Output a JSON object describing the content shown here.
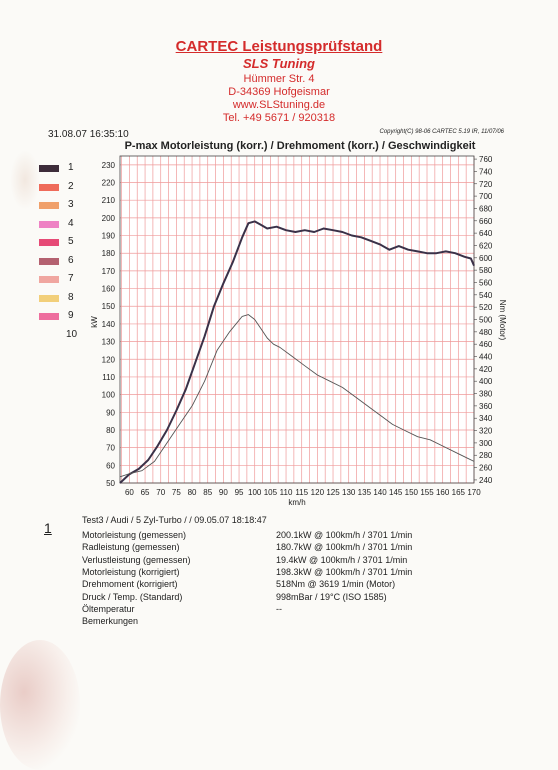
{
  "header": {
    "title": "CARTEC Leistungsprüfstand",
    "subtitle": "SLS Tuning",
    "street": "Hümmer Str. 4",
    "city": "D-34369 Hofgeismar",
    "web": "www.SLStuning.de",
    "tel": "Tel. +49 5671 / 920318"
  },
  "meta": {
    "datetime": "31.08.07 16:35:10",
    "copyright": "Copyright(C) 98-06 CARTEC 5.19 IR, 11/07/06"
  },
  "colors": {
    "grid": "#ef9a9a",
    "power": "#3a3148",
    "torque": "#555555",
    "header_red": "#d42b2b"
  },
  "legend": [
    {
      "num": "1",
      "color": "#3d2c3a"
    },
    {
      "num": "2",
      "color": "#ef6b5a"
    },
    {
      "num": "3",
      "color": "#f0a06a"
    },
    {
      "num": "4",
      "color": "#ee82c4"
    },
    {
      "num": "5",
      "color": "#e64a76"
    },
    {
      "num": "6",
      "color": "#b46170"
    },
    {
      "num": "7",
      "color": "#f0a6a0"
    },
    {
      "num": "8",
      "color": "#f2cf7a"
    },
    {
      "num": "9",
      "color": "#ee6e9e"
    },
    {
      "num": "10",
      "color": ""
    }
  ],
  "chart_data": {
    "type": "line",
    "title": "P-max Motorleistung (korr.) / Drehmoment (korr.) / Geschwindigkeit",
    "xlabel": "km/h",
    "ylabel": "kW",
    "y2label": "Nm (Motor)",
    "xlim": [
      57,
      170
    ],
    "ylim": [
      50,
      235
    ],
    "y2lim": [
      235,
      765
    ],
    "x_ticks": [
      60,
      65,
      70,
      75,
      80,
      85,
      90,
      95,
      100,
      105,
      110,
      115,
      120,
      125,
      130,
      135,
      140,
      145,
      150,
      155,
      160,
      165,
      170
    ],
    "y_ticks": [
      50,
      60,
      70,
      80,
      90,
      100,
      110,
      120,
      130,
      140,
      150,
      160,
      170,
      180,
      190,
      200,
      210,
      220,
      230
    ],
    "y2_ticks": [
      240,
      260,
      280,
      300,
      320,
      340,
      360,
      380,
      400,
      420,
      440,
      460,
      480,
      500,
      520,
      540,
      560,
      580,
      600,
      620,
      640,
      660,
      680,
      700,
      720,
      740,
      760
    ],
    "grid": true,
    "series": [
      {
        "axis": "left",
        "x": [
          57,
          60,
          63,
          66,
          69,
          72,
          75,
          78,
          81,
          84,
          87,
          90,
          93,
          96,
          98,
          100,
          102,
          104,
          107,
          110,
          113,
          116,
          119,
          122,
          125,
          128,
          131,
          134,
          137,
          140,
          143,
          146,
          149,
          152,
          155,
          158,
          161,
          164,
          167,
          169,
          170
        ],
        "values": [
          50,
          55,
          58,
          63,
          71,
          80,
          91,
          103,
          118,
          133,
          150,
          163,
          175,
          189,
          197,
          198,
          196,
          194,
          195,
          193,
          192,
          193,
          192,
          194,
          193,
          192,
          190,
          189,
          187,
          185,
          182,
          184,
          182,
          181,
          180,
          180,
          181,
          180,
          178,
          177,
          173
        ]
      },
      {
        "axis": "right",
        "x": [
          57,
          60,
          64,
          68,
          72,
          76,
          80,
          84,
          88,
          92,
          96,
          98,
          100,
          102,
          104,
          106,
          108,
          112,
          116,
          120,
          124,
          128,
          132,
          136,
          140,
          144,
          148,
          152,
          156,
          160,
          164,
          168,
          170
        ],
        "values": [
          245,
          250,
          255,
          270,
          300,
          330,
          360,
          400,
          450,
          480,
          505,
          508,
          500,
          485,
          470,
          460,
          455,
          440,
          425,
          410,
          400,
          390,
          375,
          360,
          345,
          330,
          320,
          310,
          305,
          295,
          285,
          275,
          270
        ]
      }
    ]
  },
  "results": {
    "test_num": "1",
    "test_line": "Test3 / Audi / 5 Zyl-Turbo / / 09.05.07 18:18:47",
    "rows": [
      {
        "label": "Motorleistung (gemessen)",
        "value": "200.1kW @ 100km/h / 3701 1/min"
      },
      {
        "label": "Radleistung (gemessen)",
        "value": "180.7kW @ 100km/h / 3701 1/min"
      },
      {
        "label": "Verlustleistung (gemessen)",
        "value": "19.4kW @ 100km/h / 3701 1/min"
      },
      {
        "label": "Motorleistung (korrigiert)",
        "value": "198.3kW @ 100km/h / 3701 1/min"
      },
      {
        "label": "Drehmoment (korrigiert)",
        "value": "518Nm @ 3619 1/min (Motor)"
      },
      {
        "label": "Druck / Temp. (Standard)",
        "value": "998mBar / 19°C     (ISO 1585)"
      },
      {
        "label": "Öltemperatur",
        "value": "--"
      },
      {
        "label": "Bemerkungen",
        "value": ""
      }
    ]
  }
}
